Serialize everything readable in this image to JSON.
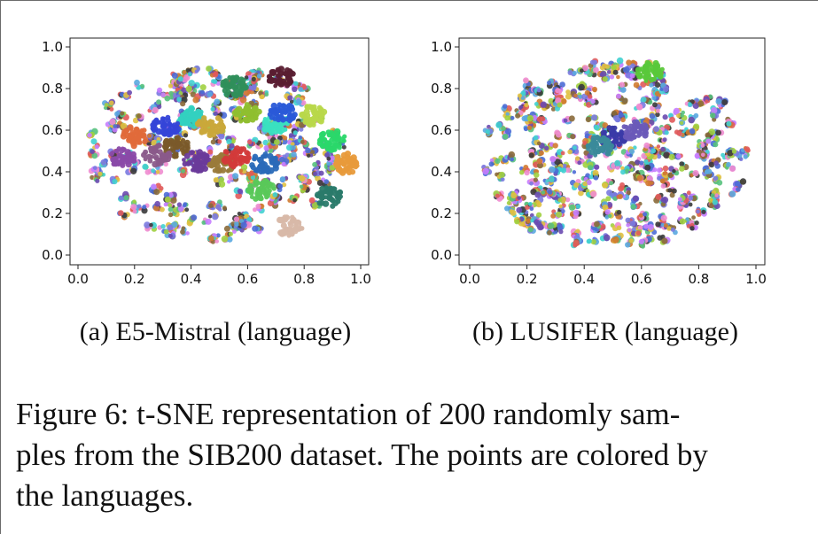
{
  "figure": {
    "subfigures": [
      {
        "caption": "(a) E5-Mistral (language)",
        "chart_data": {
          "type": "scatter",
          "title": "",
          "xlabel": "",
          "ylabel": "",
          "xlim": [
            0.0,
            1.0
          ],
          "ylim": [
            0.0,
            1.0
          ],
          "xticks": [
            "0.0",
            "0.2",
            "0.4",
            "0.6",
            "0.8",
            "1.0"
          ],
          "yticks": [
            "0.0",
            "0.2",
            "0.4",
            "0.6",
            "0.8",
            "1.0"
          ],
          "grid": false,
          "legend": "none",
          "distribution": "ellipse",
          "center": [
            0.48,
            0.5
          ],
          "radius": [
            0.45,
            0.43
          ],
          "n_clusters": 220,
          "clusters": [
            {
              "x": 0.72,
              "y": 0.85,
              "color": "#5a1e32"
            },
            {
              "x": 0.55,
              "y": 0.81,
              "color": "#2f8f5b"
            },
            {
              "x": 0.6,
              "y": 0.68,
              "color": "#8fbf2f"
            },
            {
              "x": 0.4,
              "y": 0.66,
              "color": "#33d1c0"
            },
            {
              "x": 0.31,
              "y": 0.62,
              "color": "#3545d8"
            },
            {
              "x": 0.47,
              "y": 0.62,
              "color": "#c9a83a"
            },
            {
              "x": 0.35,
              "y": 0.52,
              "color": "#7a5a2a"
            },
            {
              "x": 0.28,
              "y": 0.48,
              "color": "#8a5a8a"
            },
            {
              "x": 0.42,
              "y": 0.45,
              "color": "#6a3a9a"
            },
            {
              "x": 0.51,
              "y": 0.44,
              "color": "#9a7a3a"
            },
            {
              "x": 0.56,
              "y": 0.47,
              "color": "#d33a3a"
            },
            {
              "x": 0.66,
              "y": 0.44,
              "color": "#2a6ab8"
            },
            {
              "x": 0.83,
              "y": 0.67,
              "color": "#b8d84a"
            },
            {
              "x": 0.9,
              "y": 0.55,
              "color": "#2ad86a"
            },
            {
              "x": 0.95,
              "y": 0.44,
              "color": "#e89a3a"
            },
            {
              "x": 0.89,
              "y": 0.28,
              "color": "#2a7a6a"
            },
            {
              "x": 0.7,
              "y": 0.63,
              "color": "#3ae0c0"
            },
            {
              "x": 0.2,
              "y": 0.57,
              "color": "#e06a3a"
            },
            {
              "x": 0.16,
              "y": 0.47,
              "color": "#8a4aa8"
            },
            {
              "x": 0.72,
              "y": 0.68,
              "color": "#2a5ad8"
            },
            {
              "x": 0.65,
              "y": 0.31,
              "color": "#5ac85a"
            },
            {
              "x": 0.75,
              "y": 0.14,
              "color": "#d8b8a8"
            }
          ]
        }
      },
      {
        "caption": "(b) LUSIFER (language)",
        "chart_data": {
          "type": "scatter",
          "title": "",
          "xlabel": "",
          "ylabel": "",
          "xlim": [
            0.0,
            1.0
          ],
          "ylim": [
            0.0,
            1.0
          ],
          "xticks": [
            "0.0",
            "0.2",
            "0.4",
            "0.6",
            "0.8",
            "1.0"
          ],
          "yticks": [
            "0.0",
            "0.2",
            "0.4",
            "0.6",
            "0.8",
            "1.0"
          ],
          "grid": false,
          "legend": "none",
          "distribution": "ellipse",
          "center": [
            0.5,
            0.48
          ],
          "radius": [
            0.47,
            0.45
          ],
          "n_clusters": 300,
          "clusters": [
            {
              "x": 0.63,
              "y": 0.88,
              "color": "#5ac83a"
            },
            {
              "x": 0.5,
              "y": 0.57,
              "color": "#3a3aa8"
            },
            {
              "x": 0.58,
              "y": 0.6,
              "color": "#6a5ab8"
            },
            {
              "x": 0.45,
              "y": 0.52,
              "color": "#3a8a9a"
            }
          ]
        }
      }
    ],
    "caption_lines": [
      "Figure 6: t-SNE representation of 200 randomly sam-",
      "ples from the SIB200 dataset. The points are colored by",
      "the languages."
    ]
  }
}
